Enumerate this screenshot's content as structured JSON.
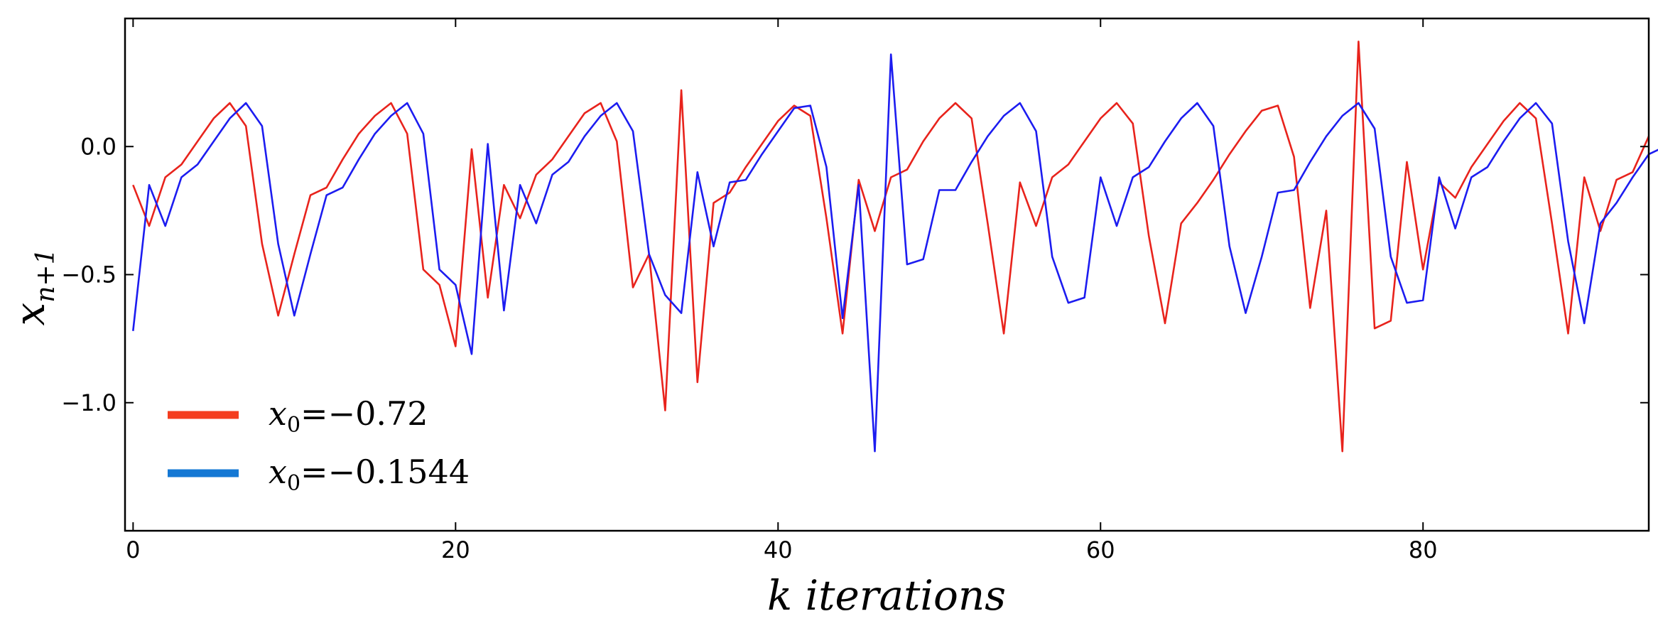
{
  "chart_data": {
    "type": "line",
    "title": "",
    "xlabel": "k iterations",
    "ylabel": "x",
    "ylabel_subscript": "n+1",
    "xlim": [
      -0.5,
      94
    ],
    "ylim": [
      -1.5,
      0.5
    ],
    "xticks": [
      0,
      20,
      40,
      60,
      80
    ],
    "xtick_labels": [
      "0",
      "20",
      "40",
      "60",
      "80"
    ],
    "yticks": [
      0.0,
      -0.5,
      -1.0
    ],
    "ytick_labels": [
      "0.0",
      "−0.5",
      "−1.0"
    ],
    "grid": false,
    "legend": {
      "placement": "lower-left"
    },
    "series": [
      {
        "name": "x0=−0.72",
        "legend_var": "x",
        "legend_sub": "0",
        "legend_eq": "=−0.72",
        "color": "#e8231c",
        "legend_color": "#f43d1e",
        "values": [
          -0.15,
          -0.31,
          -0.12,
          -0.07,
          0.02,
          0.11,
          0.17,
          0.08,
          -0.38,
          -0.66,
          -0.42,
          -0.19,
          -0.16,
          -0.05,
          0.05,
          0.12,
          0.17,
          0.05,
          -0.48,
          -0.54,
          -0.78,
          -0.01,
          -0.59,
          -0.15,
          -0.28,
          -0.11,
          -0.05,
          0.04,
          0.13,
          0.17,
          0.02,
          -0.55,
          -0.42,
          -1.03,
          0.22,
          -0.92,
          -0.22,
          -0.18,
          -0.08,
          0.01,
          0.1,
          0.16,
          0.12,
          -0.28,
          -0.73,
          -0.13,
          -0.33,
          -0.12,
          -0.09,
          0.02,
          0.11,
          0.17,
          0.11,
          -0.3,
          -0.73,
          -0.14,
          -0.31,
          -0.12,
          -0.07,
          0.02,
          0.11,
          0.17,
          0.09,
          -0.35,
          -0.69,
          -0.3,
          -0.22,
          -0.13,
          -0.03,
          0.06,
          0.14,
          0.16,
          -0.04,
          -0.63,
          -0.25,
          -1.19,
          0.41,
          -0.71,
          -0.68,
          -0.06,
          -0.48,
          -0.14,
          -0.2,
          -0.08,
          0.01,
          0.1,
          0.17,
          0.11,
          -0.3,
          -0.73,
          -0.12,
          -0.33,
          -0.13,
          -0.1,
          0.04
        ]
      },
      {
        "name": "x0=−0.1544",
        "legend_var": "x",
        "legend_sub": "0",
        "legend_eq": "=−0.1544",
        "color": "#1c1cf0",
        "legend_color": "#1478d4",
        "values": [
          -0.72,
          -0.15,
          -0.31,
          -0.12,
          -0.07,
          0.02,
          0.11,
          0.17,
          0.08,
          -0.38,
          -0.66,
          -0.42,
          -0.19,
          -0.16,
          -0.05,
          0.05,
          0.12,
          0.17,
          0.05,
          -0.48,
          -0.54,
          -0.81,
          0.01,
          -0.64,
          -0.15,
          -0.3,
          -0.11,
          -0.06,
          0.04,
          0.12,
          0.17,
          0.06,
          -0.42,
          -0.58,
          -0.65,
          -0.1,
          -0.39,
          -0.14,
          -0.13,
          -0.03,
          0.06,
          0.15,
          0.16,
          -0.08,
          -0.67,
          -0.15,
          -1.19,
          0.36,
          -0.46,
          -0.44,
          -0.17,
          -0.17,
          -0.06,
          0.04,
          0.12,
          0.17,
          0.06,
          -0.43,
          -0.61,
          -0.59,
          -0.12,
          -0.31,
          -0.12,
          -0.08,
          0.02,
          0.11,
          0.17,
          0.08,
          -0.39,
          -0.65,
          -0.43,
          -0.18,
          -0.17,
          -0.06,
          0.04,
          0.12,
          0.17,
          0.07,
          -0.43,
          -0.61,
          -0.6,
          -0.12,
          -0.32,
          -0.12,
          -0.08,
          0.02,
          0.11,
          0.17,
          0.09,
          -0.37,
          -0.69,
          -0.3,
          -0.22,
          -0.12,
          -0.03,
          0.0
        ]
      }
    ]
  }
}
